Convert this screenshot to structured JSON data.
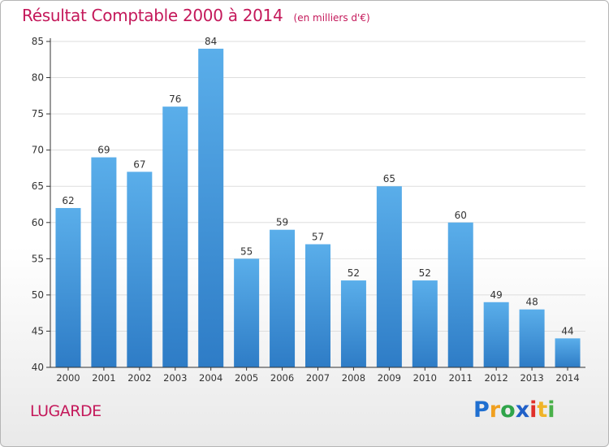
{
  "title": "Résultat Comptable 2000 à 2014",
  "unit": "(en milliers d'€)",
  "commune": "LUGARDE",
  "logo": {
    "letters": [
      "P",
      "r",
      "o",
      "x",
      "i",
      "t",
      "i"
    ],
    "colors": [
      "#1f6fd0",
      "#f0a020",
      "#2fa44a",
      "#2060c8",
      "#e0302a",
      "#f0b428",
      "#4ab04a"
    ]
  },
  "colors": {
    "bar_top": "#5aaeea",
    "bar_bottom": "#2e7cc6",
    "grid": "#dddddd",
    "axis": "#333333",
    "text": "#333333",
    "title": "#c4185a"
  },
  "chart_data": {
    "type": "bar",
    "title": "Résultat Comptable 2000 à 2014",
    "xlabel": "",
    "ylabel": "",
    "ylim": [
      40,
      85
    ],
    "yticks": [
      40,
      45,
      50,
      55,
      60,
      65,
      70,
      75,
      80,
      85
    ],
    "grid": true,
    "categories": [
      "2000",
      "2001",
      "2002",
      "2003",
      "2004",
      "2005",
      "2006",
      "2007",
      "2008",
      "2009",
      "2010",
      "2011",
      "2012",
      "2013",
      "2014"
    ],
    "values": [
      62,
      69,
      67,
      76,
      84,
      55,
      59,
      57,
      52,
      65,
      52,
      60,
      49,
      48,
      44
    ]
  }
}
